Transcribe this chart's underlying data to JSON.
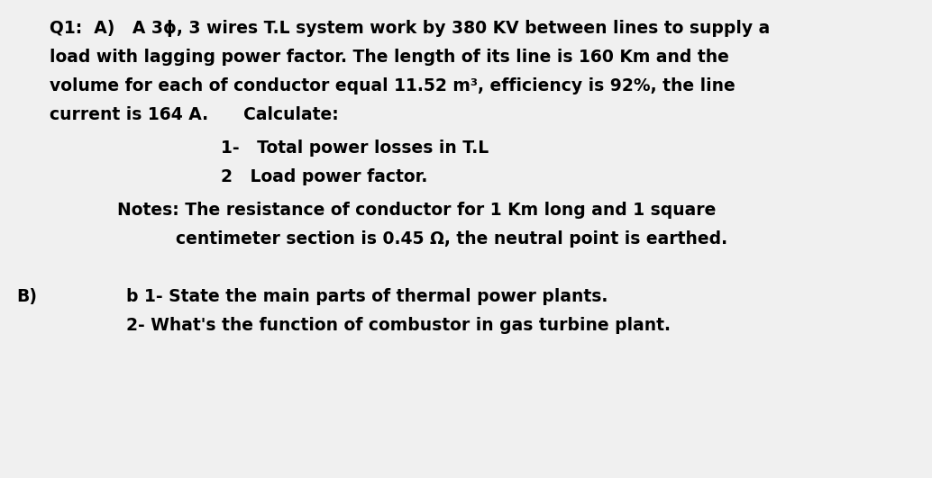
{
  "background_color": "#f0f0f0",
  "text_color": "#000000",
  "figsize": [
    10.34,
    5.31
  ],
  "dpi": 100,
  "fontsize": 13.5,
  "lines": [
    {
      "xpx": 55,
      "ypx": 22,
      "text": "Q1:  A)   A 3ϕ, 3 wires T.L system work by 380 KV between lines to supply a"
    },
    {
      "xpx": 55,
      "ypx": 54,
      "text": "load with lagging power factor. The length of its line is 160 Km and the"
    },
    {
      "xpx": 55,
      "ypx": 86,
      "text": "volume for each of conductor equal 11.52 m³, efficiency is 92%, the line"
    },
    {
      "xpx": 55,
      "ypx": 118,
      "text": "current is 164 A.      Calculate:"
    },
    {
      "xpx": 245,
      "ypx": 155,
      "text": "1-   Total power losses in T.L"
    },
    {
      "xpx": 245,
      "ypx": 187,
      "text": "2   Load power factor."
    },
    {
      "xpx": 130,
      "ypx": 224,
      "text": "Notes: The resistance of conductor for 1 Km long and 1 square"
    },
    {
      "xpx": 195,
      "ypx": 256,
      "text": "centimeter section is 0.45 Ω, the neutral point is earthed."
    },
    {
      "xpx": 18,
      "ypx": 320,
      "text": "B)"
    },
    {
      "xpx": 140,
      "ypx": 320,
      "text": "b 1- State the main parts of thermal power plants."
    },
    {
      "xpx": 140,
      "ypx": 352,
      "text": "2- What's the function of combustor in gas turbine plant."
    }
  ]
}
